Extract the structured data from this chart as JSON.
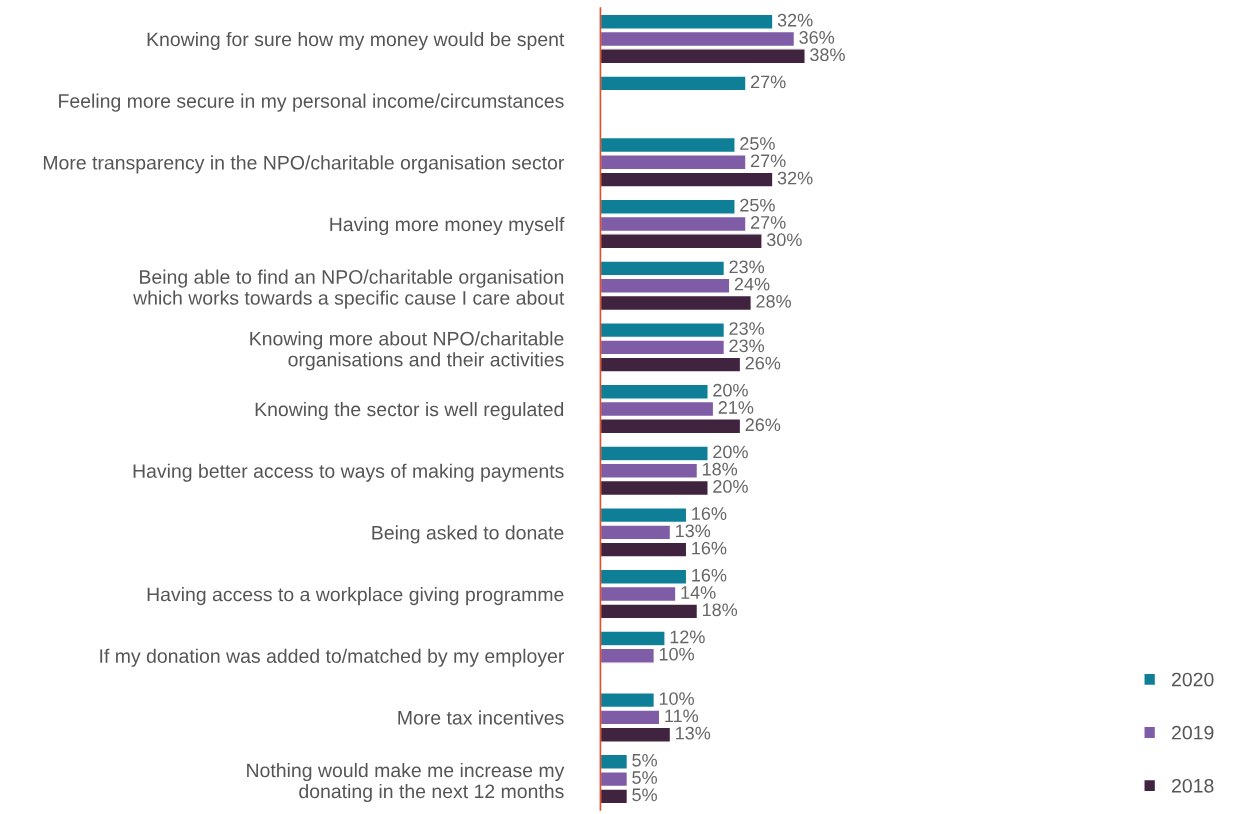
{
  "chart_data": {
    "type": "bar",
    "orientation": "horizontal",
    "tick_labels": "y",
    "legend": "bottom right",
    "categories": [
      "Knowing for sure how my money would be spent",
      "Feeling more secure in my personal income/circumstances",
      "More transparency in the NPO/charitable organisation sector",
      "Having more money myself",
      "Being able to find an NPO/charitable organisation which works towards a specific cause I care about",
      "Knowing more about NPO/charitable organisations and their activities",
      "Knowing the sector is well regulated",
      "Having better access to ways of making payments",
      "Being asked to donate",
      "Having access to a workplace giving programme",
      "If my donation was added to/matched by my employer",
      "More tax incentives",
      "Nothing would make me increase my donating in the next 12 months"
    ],
    "series": [
      {
        "name": "2020",
        "color": "#0e7f96",
        "values": [
          32,
          27,
          25,
          25,
          23,
          23,
          20,
          20,
          16,
          16,
          12,
          10,
          5
        ],
        "value_labels": [
          "32%",
          "27%",
          "25%",
          "25%",
          "23%",
          "23%",
          "20%",
          "20%",
          "16%",
          "16%",
          "12%",
          "10%",
          "5%"
        ]
      },
      {
        "name": "2019",
        "color": "#7f5ca6",
        "values": [
          36,
          null,
          27,
          27,
          24,
          23,
          21,
          18,
          13,
          14,
          10,
          11,
          5
        ],
        "value_labels": [
          "36%",
          null,
          "27%",
          "27%",
          "24%",
          "23%",
          "21%",
          "18%",
          "13%",
          "14%",
          "10%",
          "11%",
          "5%"
        ]
      },
      {
        "name": "2018",
        "color": "#40233f",
        "values": [
          38,
          null,
          32,
          30,
          28,
          26,
          26,
          20,
          16,
          18,
          null,
          13,
          5
        ],
        "value_labels": [
          "38%",
          null,
          "32%",
          "30%",
          "28%",
          "26%",
          "26%",
          "20%",
          "16%",
          "18%",
          null,
          "13%",
          "5%"
        ]
      }
    ]
  }
}
